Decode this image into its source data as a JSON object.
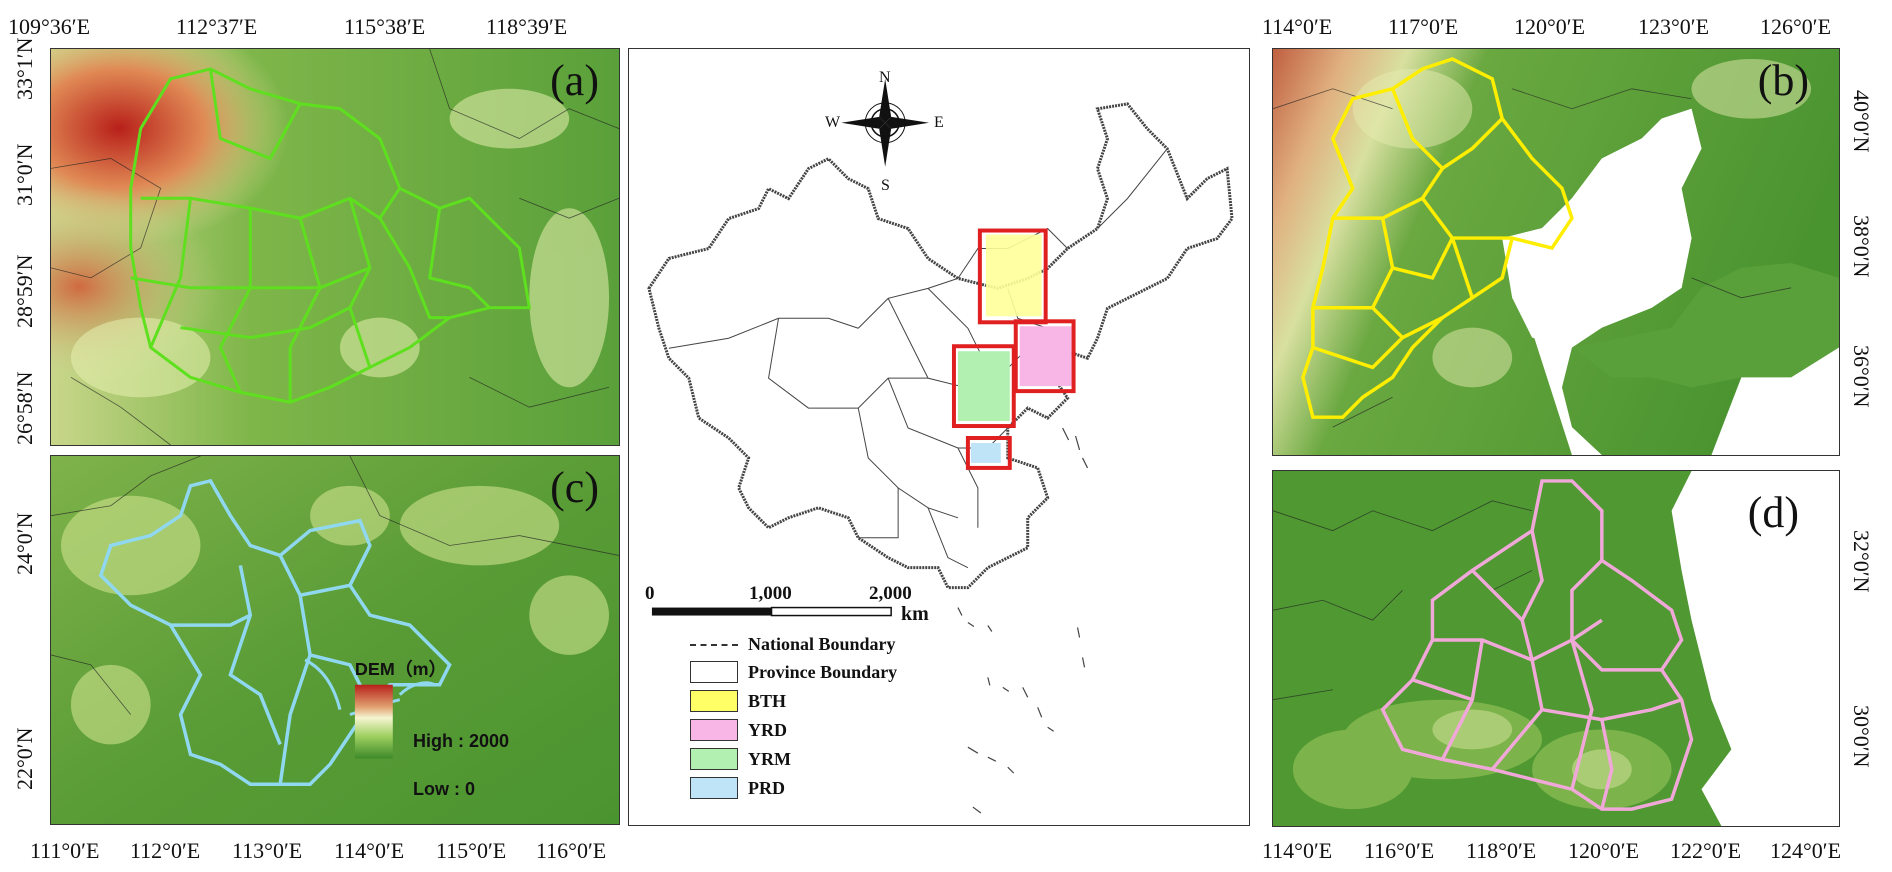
{
  "panels": {
    "a": {
      "label": "(a)",
      "top_ticks": [
        "109°36′E",
        "112°37′E",
        "115°38′E",
        "118°39′E"
      ],
      "left_ticks": [
        "33°1′N",
        "31°0′N",
        "28°59′N",
        "26°58′N"
      ],
      "boundary_color": "#5ee01f"
    },
    "b": {
      "label": "(b)",
      "top_ticks": [
        "114°0′E",
        "117°0′E",
        "120°0′E",
        "123°0′E",
        "126°0′E"
      ],
      "right_ticks": [
        "40°0′N",
        "38°0′N",
        "36°0′N"
      ],
      "boundary_color": "#ffee00"
    },
    "c": {
      "label": "(c)",
      "bottom_ticks": [
        "111°0′E",
        "112°0′E",
        "113°0′E",
        "114°0′E",
        "115°0′E",
        "116°0′E"
      ],
      "left_ticks": [
        "24°0′N",
        "22°0′N"
      ],
      "boundary_color": "#8fd8f0"
    },
    "d": {
      "label": "(d)",
      "bottom_ticks": [
        "114°0′E",
        "116°0′E",
        "118°0′E",
        "120°0′E",
        "122°0′E",
        "124°0′E"
      ],
      "right_ticks": [
        "32°0′N",
        "30°0′N"
      ],
      "boundary_color": "#f0a8d8"
    }
  },
  "dem_legend": {
    "title": "DEM（m）",
    "high": "High : 2000",
    "low": "Low : 0"
  },
  "compass": {
    "n": "N",
    "s": "S",
    "e": "E",
    "w": "W"
  },
  "scalebar": {
    "labels": [
      "0",
      "1,000",
      "2,000"
    ],
    "unit": "km"
  },
  "legend": [
    {
      "label": "National Boundary",
      "kind": "line",
      "color": "#333333"
    },
    {
      "label": "Province Boundary",
      "kind": "box",
      "color": "#ffffff"
    },
    {
      "label": "BTH",
      "kind": "box",
      "color": "#ffff66"
    },
    {
      "label": "YRD",
      "kind": "box",
      "color": "#f7b6e6"
    },
    {
      "label": "YRM",
      "kind": "box",
      "color": "#b2f0b2"
    },
    {
      "label": "PRD",
      "kind": "box",
      "color": "#bfe4f8"
    }
  ],
  "highlight_color": "#e02020"
}
